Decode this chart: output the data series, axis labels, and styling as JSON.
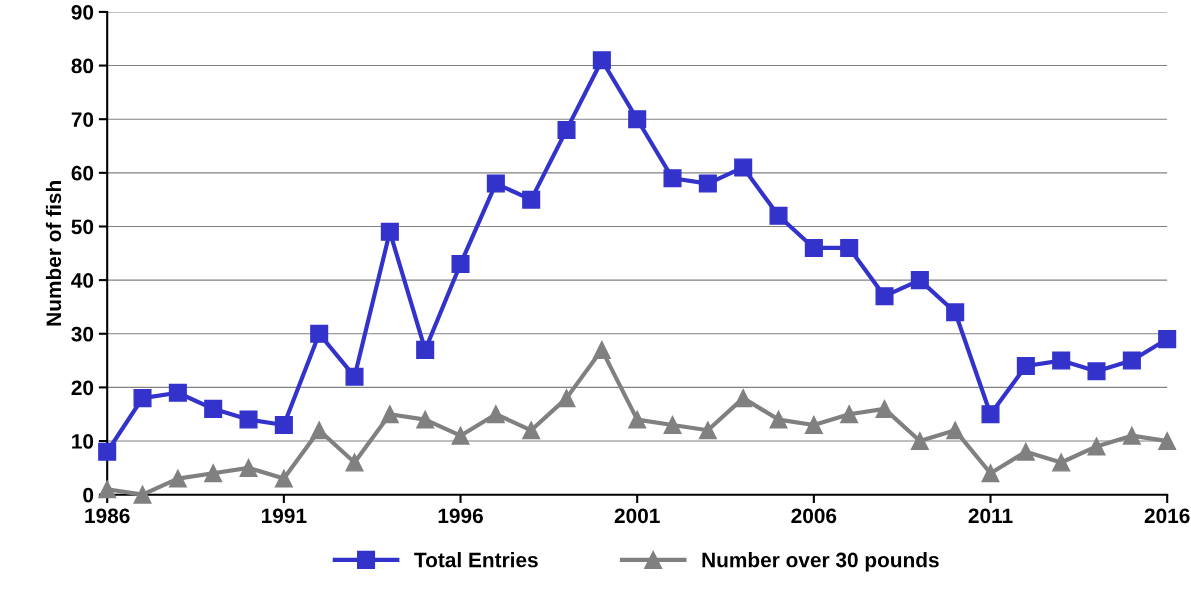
{
  "chart_data": {
    "type": "line",
    "ylabel": "Number of fish",
    "x": [
      1986,
      1987,
      1988,
      1989,
      1990,
      1991,
      1992,
      1993,
      1994,
      1995,
      1996,
      1997,
      1998,
      1999,
      2000,
      2001,
      2002,
      2003,
      2004,
      2005,
      2006,
      2007,
      2008,
      2009,
      2010,
      2011,
      2012,
      2013,
      2014,
      2015,
      2016
    ],
    "series": [
      {
        "name": "Total Entries",
        "color": "#3333cc",
        "marker": "square",
        "values": [
          8,
          18,
          19,
          16,
          14,
          13,
          30,
          22,
          49,
          27,
          43,
          58,
          55,
          68,
          81,
          70,
          59,
          58,
          61,
          52,
          46,
          46,
          37,
          40,
          34,
          15,
          24,
          25,
          23,
          25,
          29
        ]
      },
      {
        "name": "Number over 30 pounds",
        "color": "#808080",
        "marker": "triangle",
        "values": [
          1,
          0,
          3,
          4,
          5,
          3,
          12,
          6,
          15,
          14,
          11,
          15,
          12,
          18,
          27,
          14,
          13,
          12,
          18,
          14,
          13,
          15,
          16,
          10,
          12,
          4,
          8,
          6,
          9,
          11,
          10
        ]
      }
    ],
    "xlim": [
      1986,
      2016
    ],
    "xticks": [
      1986,
      1991,
      1996,
      2001,
      2006,
      2011,
      2016
    ],
    "ylim": [
      0,
      90
    ],
    "yticks": [
      0,
      10,
      20,
      30,
      40,
      50,
      60,
      70,
      80,
      90
    ],
    "grid": "y",
    "legend": "bottom",
    "line_style": "solid"
  }
}
